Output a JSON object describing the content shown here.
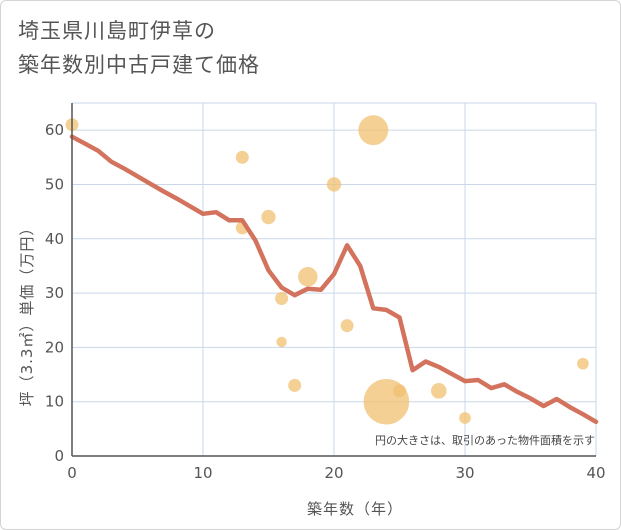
{
  "chart_data": {
    "type": "scatter",
    "title_lines": [
      "埼玉県川島町伊草の",
      "築年数別中古戸建て価格"
    ],
    "xlabel": "築年数（年）",
    "ylabel": "坪（3.3㎡）単価（万円）",
    "xlim": [
      0,
      40
    ],
    "ylim": [
      0,
      65
    ],
    "xticks": [
      0,
      10,
      20,
      30,
      40
    ],
    "yticks": [
      0,
      10,
      20,
      30,
      40,
      50,
      60
    ],
    "grid": true,
    "note": "円の大きさは、取引のあった物件面積を示す",
    "colors": {
      "bubble": "#f0c070",
      "line": "#d4735d",
      "grid": "#c9d7e8",
      "axis": "#555555",
      "text": "#555555"
    },
    "series": [
      {
        "kind": "bubble",
        "points": [
          {
            "x": 0,
            "y": 61,
            "size": 1.0
          },
          {
            "x": 13,
            "y": 55,
            "size": 1.0
          },
          {
            "x": 13,
            "y": 42,
            "size": 1.0
          },
          {
            "x": 15,
            "y": 44,
            "size": 1.1
          },
          {
            "x": 16,
            "y": 29,
            "size": 1.0
          },
          {
            "x": 16,
            "y": 21,
            "size": 0.8
          },
          {
            "x": 17,
            "y": 13,
            "size": 1.0
          },
          {
            "x": 18,
            "y": 33,
            "size": 1.5
          },
          {
            "x": 20,
            "y": 50,
            "size": 1.1
          },
          {
            "x": 21,
            "y": 24,
            "size": 1.0
          },
          {
            "x": 23,
            "y": 60,
            "size": 2.3
          },
          {
            "x": 24,
            "y": 10,
            "size": 3.5
          },
          {
            "x": 25,
            "y": 12,
            "size": 1.0
          },
          {
            "x": 28,
            "y": 12,
            "size": 1.2
          },
          {
            "x": 30,
            "y": 7,
            "size": 0.9
          },
          {
            "x": 39,
            "y": 17,
            "size": 0.9
          }
        ]
      },
      {
        "kind": "line",
        "x": [
          0,
          1,
          2,
          3,
          4,
          5,
          6,
          7,
          8,
          9,
          10,
          11,
          12,
          13,
          14,
          15,
          16,
          17,
          18,
          19,
          20,
          21,
          22,
          23,
          24,
          25,
          26,
          27,
          28,
          29,
          30,
          31,
          32,
          33,
          34,
          35,
          36,
          37,
          38,
          39,
          40
        ],
        "y": [
          58.8,
          57.5,
          56.2,
          54.2,
          52.9,
          51.5,
          50.1,
          48.7,
          47.4,
          46.0,
          44.6,
          44.9,
          43.4,
          43.4,
          39.7,
          34.2,
          31.0,
          29.6,
          30.8,
          30.6,
          33.5,
          38.8,
          35.0,
          27.2,
          26.9,
          25.5,
          15.8,
          17.4,
          16.4,
          15.1,
          13.8,
          14.0,
          12.5,
          13.2,
          11.8,
          10.6,
          9.2,
          10.5,
          9.0,
          7.7,
          6.3
        ]
      }
    ]
  }
}
